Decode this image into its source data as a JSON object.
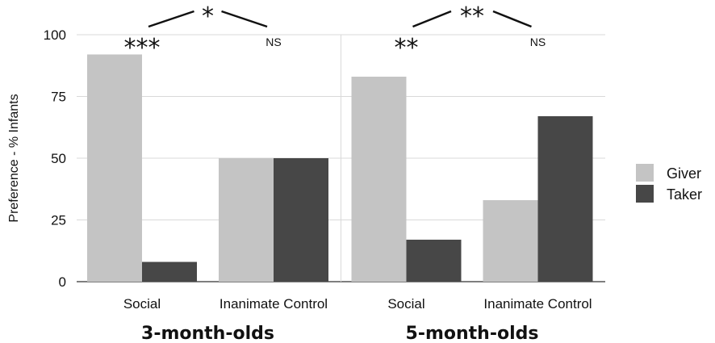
{
  "chart_data": {
    "type": "bar",
    "ylabel": "Preference - % Infants",
    "ylim": [
      0,
      100
    ],
    "yticks": [
      0,
      25,
      50,
      75,
      100
    ],
    "grid": true,
    "legend_position": "right",
    "series": [
      {
        "name": "Giver",
        "color": "#c4c4c4"
      },
      {
        "name": "Taker",
        "color": "#474747"
      }
    ],
    "panels": [
      {
        "title": "3-month-olds",
        "categories": [
          "Social",
          "Inanimate Control"
        ],
        "values": {
          "Giver": [
            92,
            50
          ],
          "Taker": [
            8,
            50
          ]
        },
        "category_annotations": [
          "***",
          "NS"
        ],
        "comparison_annotation": "*"
      },
      {
        "title": "5-month-olds",
        "categories": [
          "Social",
          "Inanimate Control"
        ],
        "values": {
          "Giver": [
            83,
            33
          ],
          "Taker": [
            17,
            67
          ]
        },
        "category_annotations": [
          "**",
          "NS"
        ],
        "comparison_annotation": "**"
      }
    ]
  }
}
